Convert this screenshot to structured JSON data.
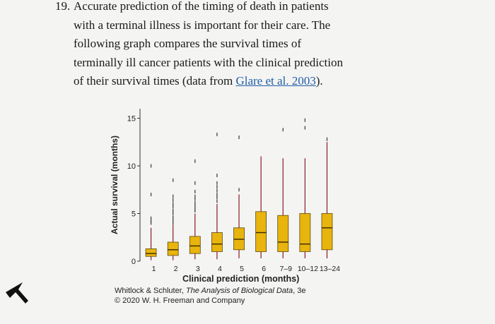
{
  "question": {
    "number": "19.",
    "line1": "Accurate prediction of the timing of death in patients",
    "line2": "with a terminal illness is important for their care. The",
    "line3": "following graph compares the survival times of",
    "line4": "terminally ill cancer patients with the clinical prediction",
    "line5_pre": "of their survival times (data from ",
    "citation": "Glare et al. 2003",
    "line5_post": ")."
  },
  "chart_data": {
    "type": "boxplot",
    "xlabel": "Clinical prediction (months)",
    "ylabel": "Actual survival (months)",
    "ylim": [
      0,
      16
    ],
    "yticks": [
      0,
      5,
      10,
      15
    ],
    "categories": [
      "1",
      "2",
      "3",
      "4",
      "5",
      "6",
      "7–9",
      "10–12",
      "13–24"
    ],
    "box_color": "#e8b40e",
    "whisker_color": "#8b1a2b",
    "boxes": [
      {
        "category": "1",
        "q1": 0.5,
        "median": 0.8,
        "q3": 1.3,
        "whisker_low": 0.1,
        "whisker_high": 3.5,
        "outliers": [
          4.0,
          4.2,
          4.5,
          7.0,
          10.0
        ]
      },
      {
        "category": "2",
        "q1": 0.6,
        "median": 1.2,
        "q3": 2.0,
        "whisker_low": 0.1,
        "whisker_high": 3.8,
        "outliers": [
          4.0,
          4.3,
          4.6,
          5.0,
          5.3,
          5.7,
          6.0,
          6.4,
          6.8,
          8.5
        ]
      },
      {
        "category": "3",
        "q1": 0.8,
        "median": 1.6,
        "q3": 2.6,
        "whisker_low": 0.2,
        "whisker_high": 5.0,
        "outliers": [
          5.3,
          5.5,
          5.8,
          6.1,
          6.5,
          6.8,
          7.3,
          8.2,
          10.5
        ]
      },
      {
        "category": "4",
        "q1": 1.0,
        "median": 1.8,
        "q3": 3.0,
        "whisker_low": 0.2,
        "whisker_high": 6.0,
        "outliers": [
          6.3,
          6.7,
          7.0,
          7.4,
          7.8,
          8.2,
          9.0,
          13.3
        ]
      },
      {
        "category": "5",
        "q1": 1.2,
        "median": 2.3,
        "q3": 3.5,
        "whisker_low": 0.3,
        "whisker_high": 7.0,
        "outliers": [
          7.5,
          13.0
        ]
      },
      {
        "category": "6",
        "q1": 1.0,
        "median": 3.0,
        "q3": 5.2,
        "whisker_low": 0.3,
        "whisker_high": 11.0,
        "outliers": []
      },
      {
        "category": "7–9",
        "q1": 1.0,
        "median": 2.0,
        "q3": 4.8,
        "whisker_low": 0.3,
        "whisker_high": 10.8,
        "outliers": [
          13.8
        ]
      },
      {
        "category": "10–12",
        "q1": 1.0,
        "median": 1.8,
        "q3": 5.0,
        "whisker_low": 0.3,
        "whisker_high": 10.8,
        "outliers": [
          14.0,
          14.8
        ]
      },
      {
        "category": "13–24",
        "q1": 1.2,
        "median": 3.5,
        "q3": 5.0,
        "whisker_low": 0.3,
        "whisker_high": 12.5,
        "outliers": [
          12.8
        ]
      }
    ]
  },
  "credit": {
    "authors": "Whitlock & Schluter, ",
    "book": "The Analysis of Biological Data",
    "edition": ", 3e",
    "copyright": "© 2020 W. H. Freeman and Company"
  }
}
